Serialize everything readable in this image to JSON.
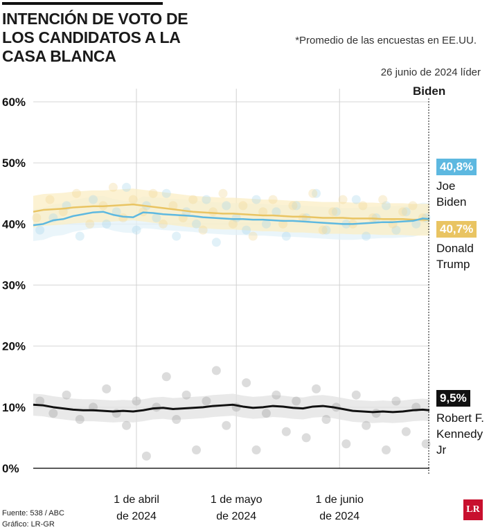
{
  "header": {
    "title": "INTENCIÓN DE VOTO DE LOS CANDIDATOS A LA CASA BLANCA",
    "note": "*Promedio de las encuestas en EE.UU.",
    "date": "26 junio de 2024 líder",
    "leader": "Biden"
  },
  "footer": {
    "source": "Fuente: 538 / ABC",
    "credit": "Gráfico: LR-GR",
    "logo": "LR"
  },
  "colors": {
    "biden": "#5db8e0",
    "trump": "#e9c462",
    "rfk": "#111111",
    "band_gray": "#e1e1e1",
    "band_yellow": "#fbeec4",
    "band_blue": "#e3f1f8"
  },
  "chart_data": {
    "type": "line",
    "title": "INTENCIÓN DE VOTO DE LOS CANDIDATOS A LA CASA BLANCA",
    "ylabel": "",
    "xlabel": "",
    "ylim": [
      0,
      60
    ],
    "x_range_days": [
      0,
      119
    ],
    "y_ticks": [
      "0%",
      "10%",
      "20%",
      "30%",
      "40%",
      "50%",
      "60%"
    ],
    "x_ticks": [
      {
        "day": 31,
        "line1": "1 de abril",
        "line2": "de 2024"
      },
      {
        "day": 61,
        "line1": "1 de mayo",
        "line2": "de 2024"
      },
      {
        "day": 92,
        "line1": "1 de junio",
        "line2": "de 2024"
      }
    ],
    "series": [
      {
        "key": "biden",
        "name_line1": "Joe",
        "name_line2": "Biden",
        "final_label": "40,8%",
        "band": 2.6,
        "x": [
          0,
          3,
          6,
          9,
          12,
          15,
          18,
          21,
          24,
          27,
          30,
          33,
          36,
          39,
          42,
          45,
          48,
          51,
          54,
          57,
          60,
          63,
          66,
          69,
          72,
          75,
          78,
          81,
          84,
          87,
          90,
          93,
          96,
          99,
          102,
          105,
          108,
          111,
          114,
          117,
          119
        ],
        "values": [
          39.8,
          40.0,
          40.6,
          40.8,
          41.3,
          41.6,
          41.9,
          42.0,
          41.5,
          41.2,
          41.1,
          41.9,
          41.8,
          41.6,
          41.5,
          41.4,
          41.3,
          41.1,
          41.0,
          40.9,
          40.8,
          40.8,
          40.7,
          40.7,
          40.6,
          40.5,
          40.5,
          40.4,
          40.3,
          40.2,
          40.1,
          40.0,
          40.0,
          40.1,
          40.2,
          40.3,
          40.3,
          40.4,
          40.5,
          40.9,
          40.8
        ]
      },
      {
        "key": "trump",
        "name_line1": "Donald",
        "name_line2": "Trump",
        "final_label": "40,7%",
        "band": 2.6,
        "x": [
          0,
          3,
          6,
          9,
          12,
          15,
          18,
          21,
          24,
          27,
          30,
          33,
          36,
          39,
          42,
          45,
          48,
          51,
          54,
          57,
          60,
          63,
          66,
          69,
          72,
          75,
          78,
          81,
          84,
          87,
          90,
          93,
          96,
          99,
          102,
          105,
          108,
          111,
          114,
          117,
          119
        ],
        "values": [
          42.0,
          42.3,
          42.4,
          42.5,
          42.7,
          42.8,
          42.9,
          42.9,
          43.0,
          43.1,
          43.2,
          43.0,
          42.8,
          42.6,
          42.4,
          42.2,
          42.0,
          41.9,
          41.8,
          41.7,
          41.7,
          41.6,
          41.5,
          41.4,
          41.4,
          41.3,
          41.2,
          41.2,
          41.1,
          41.0,
          41.0,
          41.0,
          40.9,
          40.9,
          40.9,
          40.8,
          40.8,
          40.8,
          40.7,
          40.7,
          40.7
        ]
      },
      {
        "key": "rfk",
        "name_line1": "Robert F.",
        "name_line2": "Kennedy",
        "name_line3": "Jr",
        "final_label": "9,5%",
        "band": 1.8,
        "x": [
          0,
          3,
          6,
          9,
          12,
          15,
          18,
          21,
          24,
          27,
          30,
          33,
          36,
          39,
          42,
          45,
          48,
          51,
          54,
          57,
          60,
          63,
          66,
          69,
          72,
          75,
          78,
          81,
          84,
          87,
          90,
          93,
          96,
          99,
          102,
          105,
          108,
          111,
          114,
          117,
          119
        ],
        "values": [
          10.4,
          10.3,
          10.0,
          9.8,
          9.6,
          9.5,
          9.5,
          9.4,
          9.3,
          9.4,
          9.3,
          9.5,
          9.8,
          9.9,
          9.7,
          9.8,
          9.9,
          10.0,
          10.2,
          10.3,
          10.4,
          10.1,
          9.9,
          10.0,
          10.2,
          10.1,
          9.9,
          9.8,
          10.1,
          10.2,
          10.0,
          9.7,
          9.4,
          9.3,
          9.2,
          9.3,
          9.2,
          9.3,
          9.5,
          9.6,
          9.5
        ]
      }
    ],
    "polls": {
      "biden": [
        [
          2,
          39
        ],
        [
          6,
          41
        ],
        [
          10,
          43
        ],
        [
          14,
          38
        ],
        [
          18,
          44
        ],
        [
          22,
          40
        ],
        [
          25,
          42
        ],
        [
          28,
          46
        ],
        [
          31,
          39
        ],
        [
          34,
          43
        ],
        [
          37,
          41
        ],
        [
          40,
          45
        ],
        [
          43,
          38
        ],
        [
          46,
          42
        ],
        [
          49,
          40
        ],
        [
          52,
          44
        ],
        [
          55,
          37
        ],
        [
          58,
          43
        ],
        [
          61,
          41
        ],
        [
          64,
          39
        ],
        [
          67,
          44
        ],
        [
          70,
          40
        ],
        [
          73,
          42
        ],
        [
          76,
          38
        ],
        [
          79,
          43
        ],
        [
          82,
          41
        ],
        [
          85,
          45
        ],
        [
          88,
          39
        ],
        [
          91,
          42
        ],
        [
          94,
          40
        ],
        [
          97,
          44
        ],
        [
          100,
          38
        ],
        [
          103,
          41
        ],
        [
          106,
          43
        ],
        [
          109,
          39
        ],
        [
          112,
          42
        ],
        [
          115,
          40
        ],
        [
          118,
          41
        ]
      ],
      "trump": [
        [
          1,
          41
        ],
        [
          5,
          44
        ],
        [
          9,
          42
        ],
        [
          13,
          45
        ],
        [
          17,
          40
        ],
        [
          21,
          43
        ],
        [
          24,
          46
        ],
        [
          27,
          41
        ],
        [
          30,
          44
        ],
        [
          33,
          42
        ],
        [
          36,
          45
        ],
        [
          39,
          40
        ],
        [
          42,
          43
        ],
        [
          45,
          41
        ],
        [
          48,
          44
        ],
        [
          51,
          39
        ],
        [
          54,
          42
        ],
        [
          57,
          45
        ],
        [
          60,
          40
        ],
        [
          63,
          43
        ],
        [
          66,
          38
        ],
        [
          69,
          42
        ],
        [
          72,
          44
        ],
        [
          75,
          40
        ],
        [
          78,
          43
        ],
        [
          81,
          41
        ],
        [
          84,
          45
        ],
        [
          87,
          39
        ],
        [
          90,
          42
        ],
        [
          93,
          44
        ],
        [
          96,
          40
        ],
        [
          99,
          43
        ],
        [
          102,
          41
        ],
        [
          105,
          44
        ],
        [
          108,
          40
        ],
        [
          111,
          42
        ],
        [
          114,
          43
        ],
        [
          117,
          41
        ]
      ],
      "rfk": [
        [
          2,
          11
        ],
        [
          6,
          9
        ],
        [
          10,
          12
        ],
        [
          14,
          8
        ],
        [
          18,
          10
        ],
        [
          22,
          13
        ],
        [
          25,
          9
        ],
        [
          28,
          7
        ],
        [
          31,
          11
        ],
        [
          34,
          2
        ],
        [
          37,
          10
        ],
        [
          40,
          15
        ],
        [
          43,
          8
        ],
        [
          46,
          12
        ],
        [
          49,
          3
        ],
        [
          52,
          11
        ],
        [
          55,
          16
        ],
        [
          58,
          7
        ],
        [
          61,
          10
        ],
        [
          64,
          14
        ],
        [
          67,
          3
        ],
        [
          70,
          9
        ],
        [
          73,
          12
        ],
        [
          76,
          6
        ],
        [
          79,
          11
        ],
        [
          82,
          5
        ],
        [
          85,
          13
        ],
        [
          88,
          8
        ],
        [
          91,
          10
        ],
        [
          94,
          4
        ],
        [
          97,
          12
        ],
        [
          100,
          7
        ],
        [
          103,
          9
        ],
        [
          106,
          3
        ],
        [
          109,
          11
        ],
        [
          112,
          6
        ],
        [
          115,
          10
        ],
        [
          118,
          4
        ]
      ]
    }
  }
}
